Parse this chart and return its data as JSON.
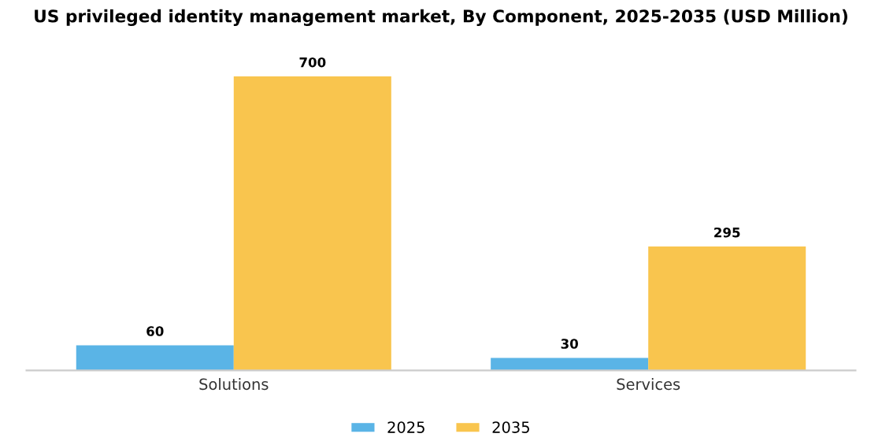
{
  "chart_data": {
    "type": "bar",
    "title": "US privileged identity management market, By Component, 2025-2035 (USD Million)",
    "categories": [
      "Solutions",
      "Services"
    ],
    "series": [
      {
        "name": "2025",
        "color": "#5ab4e6",
        "values": [
          60,
          30
        ]
      },
      {
        "name": "2035",
        "color": "#f9c54e",
        "values": [
          700,
          295
        ]
      }
    ],
    "data_labels": true,
    "legend": "bottom",
    "grid": false
  }
}
